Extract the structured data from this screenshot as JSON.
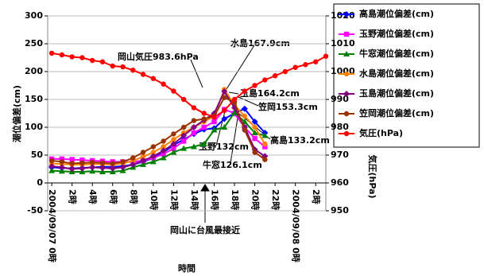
{
  "chart_data": {
    "type": "line",
    "categories": [
      "2004/09/07 0時",
      null,
      "2時",
      null,
      "4時",
      null,
      "6時",
      null,
      "8時",
      null,
      "10時",
      null,
      "12時",
      null,
      "14時",
      null,
      "16時",
      null,
      "18時",
      null,
      "20時",
      null,
      "22時",
      null,
      "2004/09/08 0時",
      null,
      "2時",
      null
    ],
    "series": [
      {
        "name": "高島潮位偏差(cm)",
        "color": "#0000ff",
        "marker": "diamond",
        "values": [
          28,
          27,
          26,
          27,
          28,
          29,
          29,
          30,
          33,
          38,
          45,
          55,
          68,
          78,
          88,
          96,
          98,
          115,
          125,
          133.2,
          110,
          90,
          null,
          null,
          null,
          null,
          null,
          null
        ]
      },
      {
        "name": "玉野潮位偏差(cm)",
        "color": "#ff00ff",
        "marker": "square",
        "values": [
          43,
          43,
          42,
          41,
          40,
          39,
          38,
          38,
          38,
          40,
          45,
          52,
          62,
          75,
          90,
          100,
          110,
          132,
          125,
          100,
          80,
          65,
          null,
          null,
          null,
          null,
          null,
          null
        ]
      },
      {
        "name": "牛窓潮位偏差(cm)",
        "color": "#008000",
        "marker": "triangle",
        "values": [
          22,
          21,
          20,
          20,
          21,
          20,
          20,
          22,
          28,
          33,
          38,
          45,
          55,
          62,
          65,
          70,
          95,
          100,
          126.1,
          110,
          90,
          85,
          null,
          null,
          null,
          null,
          null,
          null
        ]
      },
      {
        "name": "水島潮位偏差(cm)",
        "color": "#ff8000",
        "marker": "circle",
        "values": [
          35,
          34,
          33,
          33,
          34,
          34,
          33,
          35,
          40,
          47,
          55,
          65,
          78,
          90,
          100,
          110,
          120,
          167.9,
          140,
          120,
          100,
          70,
          null,
          null,
          null,
          null,
          null,
          null
        ]
      },
      {
        "name": "玉島潮位偏差(cm)",
        "color": "#800080",
        "marker": "diamond",
        "values": [
          30,
          28,
          25,
          26,
          28,
          27,
          26,
          28,
          33,
          40,
          48,
          58,
          70,
          85,
          100,
          113,
          125,
          164.2,
          135,
          100,
          60,
          48,
          null,
          null,
          null,
          null,
          null,
          null
        ]
      },
      {
        "name": "笠岡潮位偏差(cm)",
        "color": "#993300",
        "marker": "circle",
        "values": [
          40,
          38,
          35,
          36,
          37,
          36,
          35,
          38,
          45,
          55,
          65,
          75,
          88,
          100,
          112,
          115,
          120,
          153.3,
          145,
          95,
          55,
          42,
          null,
          null,
          null,
          null,
          null,
          null
        ]
      },
      {
        "name": "気圧(hPa)",
        "color": "#ff0000",
        "marker": "circle",
        "axis": "y2",
        "values": [
          1006.6,
          1006,
          1005.3,
          1005,
          1004,
          1003.5,
          1002,
          1001.7,
          1000.5,
          999,
          997.5,
          995.5,
          993,
          990,
          987,
          985,
          983.6,
          986,
          990,
          993,
          995,
          997,
          998.5,
          1000,
          1001.5,
          1002.5,
          1003.5,
          1005.5
        ]
      }
    ],
    "ylim": [
      -50,
      300
    ],
    "yticks": [
      -50,
      0,
      50,
      100,
      150,
      200,
      250,
      300
    ],
    "y2lim": [
      950,
      1020
    ],
    "y2ticks": [
      950,
      960,
      970,
      980,
      990,
      1000,
      1010,
      1020
    ],
    "ylabel": "潮位偏差(cm)",
    "y2label": "気圧(hPa)",
    "xlabel": "時間",
    "grid": true,
    "legend": "right",
    "annotations": [
      "水島167.9cm",
      "岡山気圧983.6hPa",
      "玉島164.2cm",
      "笠岡153.3cm",
      "高島133.2cm",
      "玉野132cm",
      "牛窓126.1cm",
      "岡山に台風最接近"
    ]
  }
}
